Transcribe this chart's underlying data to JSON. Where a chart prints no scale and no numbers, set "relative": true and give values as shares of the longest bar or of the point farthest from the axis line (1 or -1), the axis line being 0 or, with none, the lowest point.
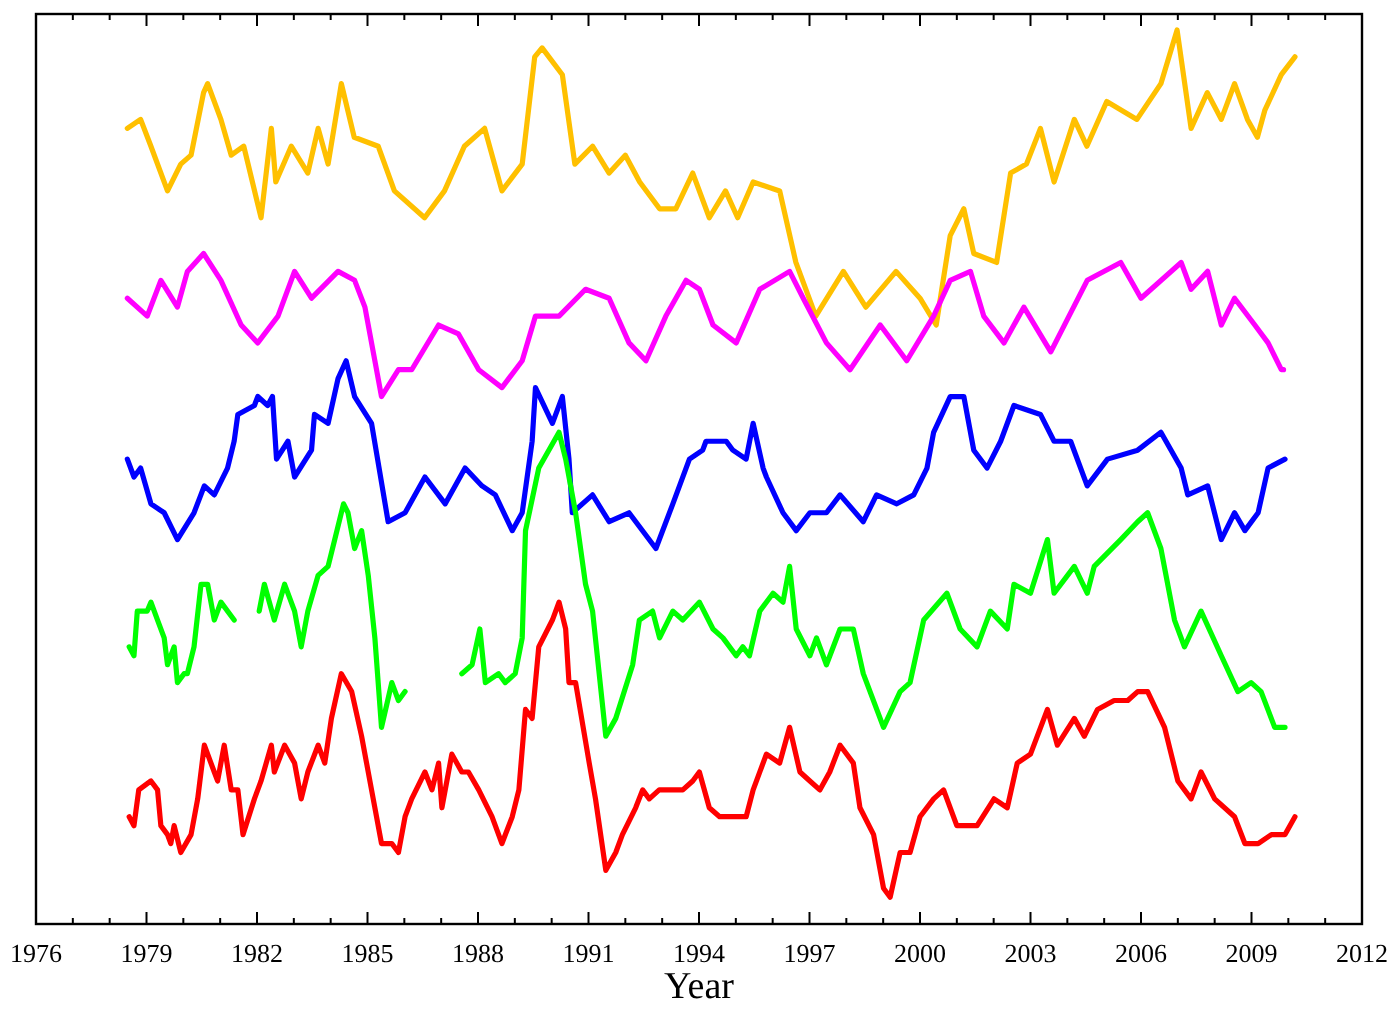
{
  "chart_data": {
    "type": "line",
    "relative": true,
    "xlabel": "Year",
    "xlim": [
      1976,
      2012
    ],
    "xticks": [
      1976,
      {
        "value": 1977,
        "label": null
      },
      {
        "value": 1978,
        "label": null
      },
      1979,
      {
        "value": 1980,
        "label": null
      },
      {
        "value": 1981,
        "label": null
      },
      1982,
      {
        "value": 1983,
        "label": null
      },
      {
        "value": 1984,
        "label": null
      },
      1985,
      {
        "value": 1986,
        "label": null
      },
      {
        "value": 1987,
        "label": null
      },
      1988,
      {
        "value": 1989,
        "label": null
      },
      {
        "value": 1990,
        "label": null
      },
      1991,
      {
        "value": 1992,
        "label": null
      },
      {
        "value": 1993,
        "label": null
      },
      1994,
      {
        "value": 1995,
        "label": null
      },
      {
        "value": 1996,
        "label": null
      },
      1997,
      {
        "value": 1998,
        "label": null
      },
      {
        "value": 1999,
        "label": null
      },
      2000,
      {
        "value": 2001,
        "label": null
      },
      {
        "value": 2002,
        "label": null
      },
      2003,
      {
        "value": 2004,
        "label": null
      },
      {
        "value": 2005,
        "label": null
      },
      2006,
      {
        "value": 2007,
        "label": null
      },
      {
        "value": 2008,
        "label": null
      },
      2009,
      {
        "value": 2010,
        "label": null
      },
      {
        "value": 2011,
        "label": null
      },
      2012
    ],
    "tick_labels": "x",
    "grid": false,
    "legend": false,
    "marker": "none",
    "line_style": "solid",
    "series": [
      {
        "color": "#ffc000",
        "x": [
          1978.48,
          1978.84,
          1979.12,
          1979.57,
          1979.93,
          1980.21,
          1980.55,
          1980.66,
          1981.02,
          1981.3,
          1981.64,
          1982.11,
          1982.39,
          1982.51,
          1982.93,
          1983.38,
          1983.66,
          1983.93,
          1984.29,
          1984.64,
          1985.29,
          1985.73,
          1986.55,
          1987.09,
          1987.63,
          1988.18,
          1988.65,
          1989.2,
          1989.54,
          1989.74,
          1990.29,
          1990.63,
          1991.11,
          1991.56,
          1992.0,
          1992.39,
          1992.93,
          1993.37,
          1993.83,
          1994.28,
          1994.72,
          1995.05,
          1995.47,
          1996.19,
          1996.63,
          1997.17,
          1997.92,
          1998.53,
          1999.35,
          2000.0,
          2000.44,
          2000.82,
          2001.19,
          2001.46,
          2002.08,
          2002.46,
          2002.89,
          2003.27,
          2003.64,
          2004.19,
          2004.53,
          2005.07,
          2005.89,
          2006.54,
          2006.98,
          2007.36,
          2007.8,
          2008.18,
          2008.54,
          2008.89,
          2009.16,
          2009.36,
          2009.81,
          2010.18
        ],
        "values": [
          0.89,
          0.9,
          0.87,
          0.82,
          0.85,
          0.86,
          0.93,
          0.94,
          0.9,
          0.86,
          0.87,
          0.79,
          0.89,
          0.83,
          0.87,
          0.84,
          0.89,
          0.85,
          0.94,
          0.88,
          0.87,
          0.82,
          0.79,
          0.82,
          0.87,
          0.89,
          0.82,
          0.85,
          0.97,
          0.98,
          0.95,
          0.85,
          0.87,
          0.84,
          0.86,
          0.83,
          0.8,
          0.8,
          0.84,
          0.79,
          0.82,
          0.79,
          0.83,
          0.82,
          0.74,
          0.68,
          0.73,
          0.69,
          0.73,
          0.7,
          0.67,
          0.77,
          0.8,
          0.75,
          0.74,
          0.84,
          0.85,
          0.89,
          0.83,
          0.9,
          0.87,
          0.92,
          0.9,
          0.94,
          1.0,
          0.89,
          0.93,
          0.9,
          0.94,
          0.9,
          0.88,
          0.91,
          0.95,
          0.97
        ]
      },
      {
        "color": "#ff00ff",
        "x": [
          1978.48,
          1979.02,
          1979.39,
          1979.84,
          1980.11,
          1980.55,
          1981.02,
          1981.57,
          1982.02,
          1982.57,
          1983.02,
          1983.48,
          1984.2,
          1984.65,
          1984.93,
          1985.38,
          1985.84,
          1986.2,
          1986.93,
          1987.47,
          1988.02,
          1988.65,
          1989.2,
          1989.56,
          1990.2,
          1990.92,
          1991.56,
          1992.1,
          1992.56,
          1993.1,
          1993.65,
          1994.01,
          1994.38,
          1995.01,
          1995.65,
          1996.46,
          1996.83,
          1997.46,
          1998.1,
          1998.92,
          1999.64,
          2000.37,
          2000.82,
          2001.37,
          2001.73,
          2002.28,
          2002.82,
          2003.55,
          2004.54,
          2005.45,
          2006.0,
          2007.09,
          2007.36,
          2007.81,
          2008.18,
          2008.54,
          2009.09,
          2009.45,
          2009.81,
          2009.87
        ],
        "values": [
          0.7,
          0.68,
          0.72,
          0.69,
          0.73,
          0.75,
          0.72,
          0.67,
          0.65,
          0.68,
          0.73,
          0.7,
          0.73,
          0.72,
          0.69,
          0.59,
          0.62,
          0.62,
          0.67,
          0.66,
          0.62,
          0.6,
          0.63,
          0.68,
          0.68,
          0.71,
          0.7,
          0.65,
          0.63,
          0.68,
          0.72,
          0.71,
          0.67,
          0.65,
          0.71,
          0.73,
          0.7,
          0.65,
          0.62,
          0.67,
          0.63,
          0.68,
          0.72,
          0.73,
          0.68,
          0.65,
          0.69,
          0.64,
          0.72,
          0.74,
          0.7,
          0.74,
          0.71,
          0.73,
          0.67,
          0.7,
          0.67,
          0.65,
          0.62,
          0.62
        ]
      },
      {
        "color": "#0000ff",
        "x": [
          1978.48,
          1978.66,
          1978.84,
          1979.12,
          1979.48,
          1979.84,
          1980.29,
          1980.57,
          1980.84,
          1981.2,
          1981.38,
          1981.48,
          1981.93,
          1982.02,
          1982.29,
          1982.42,
          1982.53,
          1982.84,
          1983.02,
          1983.48,
          1983.56,
          1983.93,
          1984.2,
          1984.42,
          1984.65,
          1985.11,
          1985.56,
          1986.02,
          1986.56,
          1987.11,
          1987.65,
          1988.11,
          1988.47,
          1988.93,
          1989.2,
          1989.47,
          1989.56,
          1990.02,
          1990.29,
          1990.47,
          1990.56,
          1991.11,
          1991.56,
          1992.1,
          1992.83,
          1993.29,
          1993.74,
          1994.1,
          1994.19,
          1994.74,
          1994.92,
          1995.28,
          1995.47,
          1995.74,
          1995.83,
          1996.28,
          1996.64,
          1997.01,
          1997.46,
          1997.83,
          1998.46,
          1998.82,
          1999.37,
          1999.83,
          2000.19,
          2000.37,
          2000.82,
          2001.19,
          2001.46,
          2001.82,
          2002.19,
          2002.55,
          2003.27,
          2003.64,
          2004.09,
          2004.54,
          2005.09,
          2005.91,
          2006.54,
          2007.09,
          2007.27,
          2007.81,
          2008.18,
          2008.54,
          2008.82,
          2009.18,
          2009.45,
          2009.91
        ],
        "values": [
          0.52,
          0.5,
          0.51,
          0.47,
          0.46,
          0.43,
          0.46,
          0.49,
          0.48,
          0.51,
          0.54,
          0.57,
          0.58,
          0.59,
          0.58,
          0.59,
          0.52,
          0.54,
          0.5,
          0.53,
          0.57,
          0.56,
          0.61,
          0.63,
          0.59,
          0.56,
          0.45,
          0.46,
          0.5,
          0.47,
          0.51,
          0.49,
          0.48,
          0.44,
          0.46,
          0.54,
          0.6,
          0.56,
          0.59,
          0.52,
          0.46,
          0.48,
          0.45,
          0.46,
          0.42,
          0.47,
          0.52,
          0.53,
          0.54,
          0.54,
          0.53,
          0.52,
          0.56,
          0.51,
          0.5,
          0.46,
          0.44,
          0.46,
          0.46,
          0.48,
          0.45,
          0.48,
          0.47,
          0.48,
          0.51,
          0.55,
          0.59,
          0.59,
          0.53,
          0.51,
          0.54,
          0.58,
          0.57,
          0.54,
          0.54,
          0.49,
          0.52,
          0.53,
          0.55,
          0.51,
          0.48,
          0.49,
          0.43,
          0.46,
          0.44,
          0.46,
          0.51,
          0.52
        ]
      },
      {
        "color": "#00ff00",
        "x": [
          1978.53,
          1978.66,
          1978.75,
          1979.02,
          1979.12,
          1979.3,
          1979.48,
          1979.57,
          1979.75,
          1979.84,
          1980.02,
          1980.11,
          1980.29,
          1980.48,
          1980.66,
          1980.84,
          1981.02,
          1981.38,
          1981.7,
          1982.06,
          1982.2,
          1982.47,
          1982.75,
          1983.02,
          1983.2,
          1983.38,
          1983.66,
          1983.93,
          1984.11,
          1984.35,
          1984.47,
          1984.65,
          1984.84,
          1985.02,
          1985.2,
          1985.38,
          1985.66,
          1985.84,
          1986.02,
          1986.8,
          1987.56,
          1987.84,
          1988.05,
          1988.2,
          1988.56,
          1988.74,
          1989.01,
          1989.2,
          1989.29,
          1989.65,
          1990.2,
          1990.38,
          1990.65,
          1990.92,
          1991.11,
          1991.47,
          1991.74,
          1992.2,
          1992.38,
          1992.74,
          1992.93,
          1993.29,
          1993.56,
          1994.01,
          1994.38,
          1994.65,
          1995.01,
          1995.19,
          1995.37,
          1995.65,
          1996.01,
          1996.28,
          1996.46,
          1996.64,
          1997.01,
          1997.19,
          1997.46,
          1997.83,
          1998.19,
          1998.46,
          1999.01,
          1999.46,
          1999.73,
          2000.1,
          2000.73,
          2001.09,
          2001.55,
          2001.91,
          2002.37,
          2002.55,
          2003.0,
          2003.46,
          2003.64,
          2004.19,
          2004.54,
          2004.73,
          2005.45,
          2005.91,
          2006.18,
          2006.54,
          2006.91,
          2007.18,
          2007.63,
          2008.18,
          2008.63,
          2008.99,
          2009.26,
          2009.63,
          2009.91
        ],
        "values": [
          0.31,
          0.3,
          0.35,
          0.35,
          0.36,
          0.34,
          0.32,
          0.29,
          0.31,
          0.27,
          0.28,
          0.28,
          0.31,
          0.38,
          0.38,
          0.34,
          0.36,
          0.34,
          null,
          0.35,
          0.38,
          0.34,
          0.38,
          0.35,
          0.31,
          0.35,
          0.39,
          0.4,
          0.43,
          0.47,
          0.46,
          0.42,
          0.44,
          0.39,
          0.32,
          0.22,
          0.27,
          0.25,
          0.26,
          null,
          0.28,
          0.29,
          0.33,
          0.27,
          0.28,
          0.27,
          0.28,
          0.32,
          0.44,
          0.51,
          0.55,
          0.52,
          0.46,
          0.38,
          0.35,
          0.21,
          0.23,
          0.29,
          0.34,
          0.35,
          0.32,
          0.35,
          0.34,
          0.36,
          0.33,
          0.32,
          0.3,
          0.31,
          0.3,
          0.35,
          0.37,
          0.36,
          0.4,
          0.33,
          0.3,
          0.32,
          0.29,
          0.33,
          0.33,
          0.28,
          0.22,
          0.26,
          0.27,
          0.34,
          0.37,
          0.33,
          0.31,
          0.35,
          0.33,
          0.38,
          0.37,
          0.43,
          0.37,
          0.4,
          0.37,
          0.4,
          0.43,
          0.45,
          0.46,
          0.42,
          0.34,
          0.31,
          0.35,
          0.3,
          0.26,
          0.27,
          0.26,
          0.22,
          0.22
        ]
      },
      {
        "color": "#ff0000",
        "x": [
          1978.53,
          1978.66,
          1978.79,
          1979.12,
          1979.3,
          1979.39,
          1979.57,
          1979.66,
          1979.75,
          1979.93,
          1980.21,
          1980.39,
          1980.57,
          1980.84,
          1980.93,
          1981.11,
          1981.3,
          1981.48,
          1981.62,
          1981.93,
          1982.11,
          1982.39,
          1982.47,
          1982.75,
          1983.02,
          1983.2,
          1983.38,
          1983.66,
          1983.84,
          1984.02,
          1984.29,
          1984.57,
          1984.84,
          1985.11,
          1985.38,
          1985.66,
          1985.84,
          1986.02,
          1986.2,
          1986.56,
          1986.75,
          1986.93,
          1987.02,
          1987.29,
          1987.56,
          1987.74,
          1988.02,
          1988.38,
          1988.65,
          1988.93,
          1989.11,
          1989.29,
          1989.47,
          1989.65,
          1990.02,
          1990.2,
          1990.38,
          1990.47,
          1990.65,
          1991.02,
          1991.19,
          1991.47,
          1991.74,
          1991.92,
          1992.28,
          1992.47,
          1992.65,
          1992.92,
          1993.19,
          1993.56,
          1993.83,
          1994.01,
          1994.28,
          1994.56,
          1994.92,
          1995.28,
          1995.47,
          1995.83,
          1996.19,
          1996.46,
          1996.74,
          1997.01,
          1997.28,
          1997.55,
          1997.83,
          1998.19,
          1998.37,
          1998.74,
          1999.01,
          1999.19,
          1999.46,
          1999.73,
          2000.0,
          2000.37,
          2000.64,
          2001.0,
          2001.28,
          2001.55,
          2002.01,
          2002.37,
          2002.64,
          2003.0,
          2003.46,
          2003.73,
          2004.19,
          2004.46,
          2004.82,
          2005.27,
          2005.64,
          2005.91,
          2006.18,
          2006.64,
          2007.0,
          2007.36,
          2007.63,
          2008.0,
          2008.54,
          2008.82,
          2009.18,
          2009.54,
          2009.91,
          2010.18
        ],
        "values": [
          0.12,
          0.11,
          0.15,
          0.16,
          0.15,
          0.11,
          0.1,
          0.09,
          0.11,
          0.08,
          0.1,
          0.14,
          0.2,
          0.17,
          0.16,
          0.2,
          0.15,
          0.15,
          0.1,
          0.14,
          0.16,
          0.2,
          0.17,
          0.2,
          0.18,
          0.14,
          0.17,
          0.2,
          0.18,
          0.23,
          0.28,
          0.26,
          0.21,
          0.15,
          0.09,
          0.09,
          0.08,
          0.12,
          0.14,
          0.17,
          0.15,
          0.18,
          0.13,
          0.19,
          0.17,
          0.17,
          0.15,
          0.12,
          0.09,
          0.12,
          0.15,
          0.24,
          0.23,
          0.31,
          0.34,
          0.36,
          0.33,
          0.27,
          0.27,
          0.18,
          0.14,
          0.06,
          0.08,
          0.1,
          0.13,
          0.15,
          0.14,
          0.15,
          0.15,
          0.15,
          0.16,
          0.17,
          0.13,
          0.12,
          0.12,
          0.12,
          0.15,
          0.19,
          0.18,
          0.22,
          0.17,
          0.16,
          0.15,
          0.17,
          0.2,
          0.18,
          0.13,
          0.1,
          0.04,
          0.03,
          0.08,
          0.08,
          0.12,
          0.14,
          0.15,
          0.11,
          0.11,
          0.11,
          0.14,
          0.13,
          0.18,
          0.19,
          0.24,
          0.2,
          0.23,
          0.21,
          0.24,
          0.25,
          0.25,
          0.26,
          0.26,
          0.22,
          0.16,
          0.14,
          0.17,
          0.14,
          0.12,
          0.09,
          0.09,
          0.1,
          0.1,
          0.12
        ]
      }
    ]
  }
}
